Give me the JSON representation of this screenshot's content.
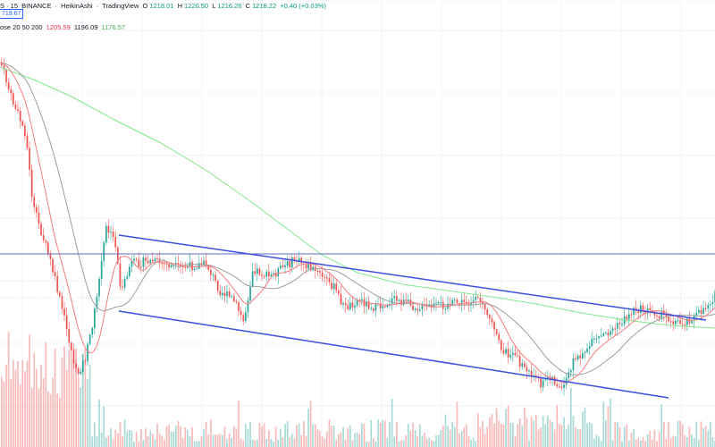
{
  "header": {
    "symbol_desc": "S · 15",
    "sep1": "·",
    "exchange": "BINANCE",
    "sep2": "·",
    "chart_style": "HeikinAshi",
    "sep3": "·",
    "platform": "TradingView",
    "ohlc": {
      "o_label": "O",
      "o": "1218.01",
      "h_label": "H",
      "h": "1220.50",
      "l_label": "L",
      "l": "1216.26",
      "c_label": "C",
      "c": "1218.22",
      "change": "+0.40 (+0.03%)"
    },
    "price_tag": "719.67"
  },
  "indicator": {
    "label": "ose 20 50 200",
    "ma20": "1205.59",
    "ma50": "1196.09",
    "ma200": "1176.57"
  },
  "colors": {
    "up": "#26a69a",
    "down": "#ef5350",
    "ma20": "#f77c80",
    "ma50": "#9e9e9e",
    "ma200": "#81e88a",
    "trend": "#3b4ee0",
    "hline": "#5c6bc0"
  }
}
